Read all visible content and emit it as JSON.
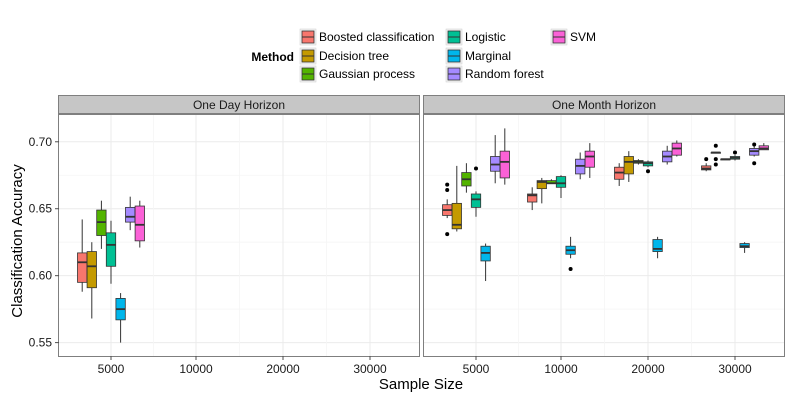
{
  "chart_data": {
    "type": "box",
    "ylabel": "Classification Accuracy",
    "xlabel": "Sample Size",
    "ylim": [
      0.54,
      0.72
    ],
    "yticks": [
      0.55,
      0.6,
      0.65,
      0.7
    ],
    "yticklabels": [
      "0.55",
      "0.60",
      "0.65",
      "0.70"
    ],
    "xticks": [
      5000,
      10000,
      20000,
      30000
    ],
    "xticklabels": [
      "5000",
      "10000",
      "20000",
      "30000"
    ],
    "grid": true,
    "legend": {
      "title": "Method",
      "placement": "top",
      "entries": [
        {
          "name": "Boosted classification",
          "color": "#F8766D"
        },
        {
          "name": "Decision tree",
          "color": "#C49A00"
        },
        {
          "name": "Gaussian process",
          "color": "#53B400"
        },
        {
          "name": "Logistic",
          "color": "#00C094"
        },
        {
          "name": "Marginal",
          "color": "#00B6EB"
        },
        {
          "name": "Random forest",
          "color": "#A58AFF"
        },
        {
          "name": "SVM",
          "color": "#FB61D7"
        }
      ]
    },
    "panels": [
      {
        "title": "One Day Horizon",
        "groups": [
          {
            "x": 5000,
            "boxes": [
              {
                "series": "Boosted classification",
                "whisker_low": 0.588,
                "q1": 0.595,
                "median": 0.61,
                "q3": 0.617,
                "whisker_high": 0.642,
                "outliers": []
              },
              {
                "series": "Decision tree",
                "whisker_low": 0.568,
                "q1": 0.591,
                "median": 0.607,
                "q3": 0.618,
                "whisker_high": 0.625,
                "outliers": []
              },
              {
                "series": "Gaussian process",
                "whisker_low": 0.62,
                "q1": 0.63,
                "median": 0.64,
                "q3": 0.649,
                "whisker_high": 0.656,
                "outliers": []
              },
              {
                "series": "Logistic",
                "whisker_low": 0.594,
                "q1": 0.607,
                "median": 0.623,
                "q3": 0.632,
                "whisker_high": 0.641,
                "outliers": []
              },
              {
                "series": "Marginal",
                "whisker_low": 0.55,
                "q1": 0.567,
                "median": 0.575,
                "q3": 0.583,
                "whisker_high": 0.587,
                "outliers": []
              },
              {
                "series": "Random forest",
                "whisker_low": 0.634,
                "q1": 0.64,
                "median": 0.644,
                "q3": 0.651,
                "whisker_high": 0.659,
                "outliers": []
              },
              {
                "series": "SVM",
                "whisker_low": 0.621,
                "q1": 0.626,
                "median": 0.638,
                "q3": 0.652,
                "whisker_high": 0.656,
                "outliers": []
              }
            ]
          }
        ]
      },
      {
        "title": "One Month Horizon",
        "groups": [
          {
            "x": 5000,
            "boxes": [
              {
                "series": "Boosted classification",
                "whisker_low": 0.643,
                "q1": 0.645,
                "median": 0.649,
                "q3": 0.653,
                "whisker_high": 0.657,
                "outliers": [
                  0.668,
                  0.664,
                  0.631
                ]
              },
              {
                "series": "Decision tree",
                "whisker_low": 0.633,
                "q1": 0.635,
                "median": 0.638,
                "q3": 0.654,
                "whisker_high": 0.682,
                "outliers": []
              },
              {
                "series": "Gaussian process",
                "whisker_low": 0.662,
                "q1": 0.667,
                "median": 0.672,
                "q3": 0.677,
                "whisker_high": 0.684,
                "outliers": []
              },
              {
                "series": "Logistic",
                "whisker_low": 0.644,
                "q1": 0.651,
                "median": 0.657,
                "q3": 0.661,
                "whisker_high": 0.663,
                "outliers": [
                  0.68
                ]
              },
              {
                "series": "Marginal",
                "whisker_low": 0.596,
                "q1": 0.611,
                "median": 0.617,
                "q3": 0.622,
                "whisker_high": 0.624,
                "outliers": []
              },
              {
                "series": "Random forest",
                "whisker_low": 0.669,
                "q1": 0.678,
                "median": 0.683,
                "q3": 0.689,
                "whisker_high": 0.705,
                "outliers": []
              },
              {
                "series": "SVM",
                "whisker_low": 0.668,
                "q1": 0.673,
                "median": 0.685,
                "q3": 0.693,
                "whisker_high": 0.71,
                "outliers": []
              }
            ]
          },
          {
            "x": 10000,
            "boxes": [
              {
                "series": "Boosted classification",
                "whisker_low": 0.649,
                "q1": 0.655,
                "median": 0.66,
                "q3": 0.661,
                "whisker_high": 0.666,
                "outliers": []
              },
              {
                "series": "Decision tree",
                "whisker_low": 0.654,
                "q1": 0.665,
                "median": 0.67,
                "q3": 0.671,
                "whisker_high": 0.673,
                "outliers": []
              },
              {
                "series": "Gaussian process",
                "whisker_low": 0.669,
                "q1": 0.669,
                "median": 0.669,
                "q3": 0.671,
                "whisker_high": 0.672,
                "outliers": []
              },
              {
                "series": "Logistic",
                "whisker_low": 0.658,
                "q1": 0.666,
                "median": 0.669,
                "q3": 0.674,
                "whisker_high": 0.675,
                "outliers": []
              },
              {
                "series": "Marginal",
                "whisker_low": 0.613,
                "q1": 0.616,
                "median": 0.619,
                "q3": 0.622,
                "whisker_high": 0.629,
                "outliers": [
                  0.605
                ]
              },
              {
                "series": "Random forest",
                "whisker_low": 0.672,
                "q1": 0.676,
                "median": 0.682,
                "q3": 0.687,
                "whisker_high": 0.692,
                "outliers": []
              },
              {
                "series": "SVM",
                "whisker_low": 0.673,
                "q1": 0.681,
                "median": 0.689,
                "q3": 0.693,
                "whisker_high": 0.699,
                "outliers": []
              }
            ]
          },
          {
            "x": 20000,
            "boxes": [
              {
                "series": "Boosted classification",
                "whisker_low": 0.667,
                "q1": 0.672,
                "median": 0.677,
                "q3": 0.681,
                "whisker_high": 0.684,
                "outliers": []
              },
              {
                "series": "Decision tree",
                "whisker_low": 0.67,
                "q1": 0.676,
                "median": 0.685,
                "q3": 0.689,
                "whisker_high": 0.693,
                "outliers": []
              },
              {
                "series": "Gaussian process",
                "whisker_low": 0.683,
                "q1": 0.684,
                "median": 0.685,
                "q3": 0.686,
                "whisker_high": 0.687,
                "outliers": []
              },
              {
                "series": "Logistic",
                "whisker_low": 0.681,
                "q1": 0.682,
                "median": 0.684,
                "q3": 0.685,
                "whisker_high": 0.686,
                "outliers": [
                  0.678
                ]
              },
              {
                "series": "Marginal",
                "whisker_low": 0.613,
                "q1": 0.618,
                "median": 0.62,
                "q3": 0.627,
                "whisker_high": 0.629,
                "outliers": []
              },
              {
                "series": "Random forest",
                "whisker_low": 0.683,
                "q1": 0.685,
                "median": 0.689,
                "q3": 0.693,
                "whisker_high": 0.697,
                "outliers": []
              },
              {
                "series": "SVM",
                "whisker_low": 0.689,
                "q1": 0.69,
                "median": 0.695,
                "q3": 0.699,
                "whisker_high": 0.701,
                "outliers": []
              }
            ]
          },
          {
            "x": 30000,
            "boxes": [
              {
                "series": "Boosted classification",
                "whisker_low": 0.678,
                "q1": 0.679,
                "median": 0.68,
                "q3": 0.682,
                "whisker_high": 0.684,
                "outliers": [
                  0.687
                ]
              },
              {
                "series": "Decision tree",
                "whisker_low": 0.692,
                "q1": 0.692,
                "median": 0.692,
                "q3": 0.692,
                "whisker_high": 0.692,
                "outliers": [
                  0.697,
                  0.687,
                  0.683
                ]
              },
              {
                "series": "Gaussian process",
                "whisker_low": 0.687,
                "q1": 0.687,
                "median": 0.687,
                "q3": 0.687,
                "whisker_high": 0.687,
                "outliers": []
              },
              {
                "series": "Logistic",
                "whisker_low": 0.686,
                "q1": 0.687,
                "median": 0.688,
                "q3": 0.689,
                "whisker_high": 0.69,
                "outliers": [
                  0.692
                ]
              },
              {
                "series": "Marginal",
                "whisker_low": 0.617,
                "q1": 0.621,
                "median": 0.622,
                "q3": 0.624,
                "whisker_high": 0.625,
                "outliers": []
              },
              {
                "series": "Random forest",
                "whisker_low": 0.689,
                "q1": 0.69,
                "median": 0.693,
                "q3": 0.695,
                "whisker_high": 0.697,
                "outliers": [
                  0.684,
                  0.698
                ]
              },
              {
                "series": "SVM",
                "whisker_low": 0.694,
                "q1": 0.694,
                "median": 0.695,
                "q3": 0.697,
                "whisker_high": 0.699,
                "outliers": []
              }
            ]
          }
        ]
      }
    ]
  }
}
